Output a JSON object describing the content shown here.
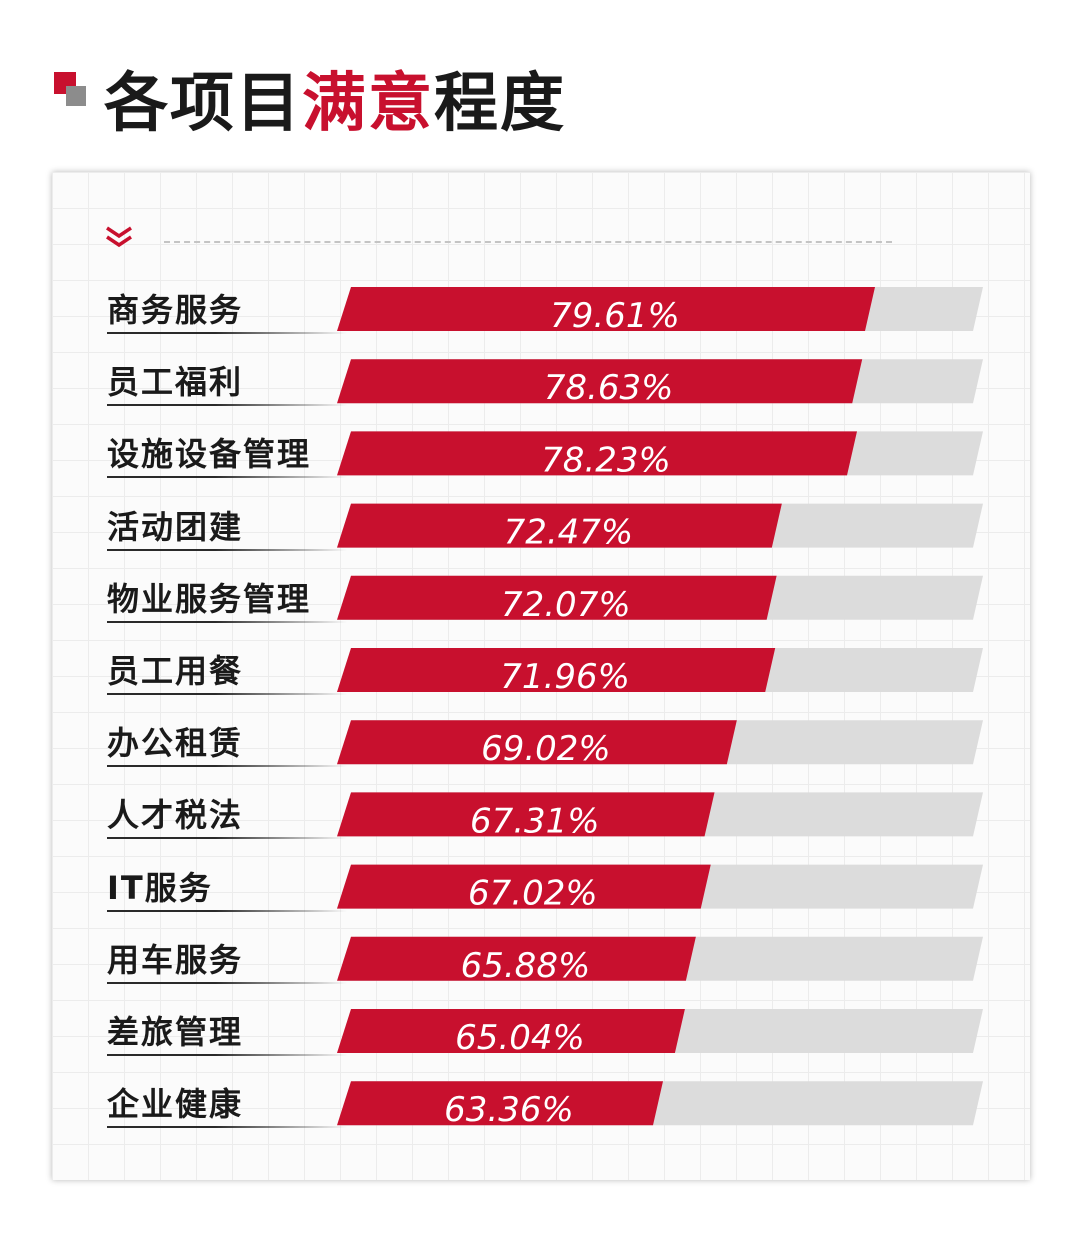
{
  "title": {
    "part1": "各项目",
    "highlight": "满意",
    "part2": "程度"
  },
  "colors": {
    "accent": "#c8102e",
    "track": "#dcdcdc"
  },
  "icons": {
    "title_mark": "square-mark-icon",
    "chevron": "double-chevron-down-icon"
  },
  "chart_data": {
    "type": "bar",
    "orientation": "horizontal",
    "title": "各项目满意程度",
    "categories": [
      "商务服务",
      "员工福利",
      "设施设备管理",
      "活动团建",
      "物业服务管理",
      "员工用餐",
      "办公租赁",
      "人才税法",
      "IT服务",
      "用车服务",
      "差旅管理",
      "企业健康"
    ],
    "values": [
      79.61,
      78.63,
      78.23,
      72.47,
      72.07,
      71.96,
      69.02,
      67.31,
      67.02,
      65.88,
      65.04,
      63.36
    ],
    "value_labels": [
      "79.61%",
      "78.63%",
      "78.23%",
      "72.47%",
      "72.07%",
      "71.96%",
      "69.02%",
      "67.31%",
      "67.02%",
      "65.88%",
      "65.04%",
      "63.36%"
    ],
    "unit": "%",
    "xlim": [
      0,
      100
    ],
    "grid": false,
    "legend": "none"
  }
}
